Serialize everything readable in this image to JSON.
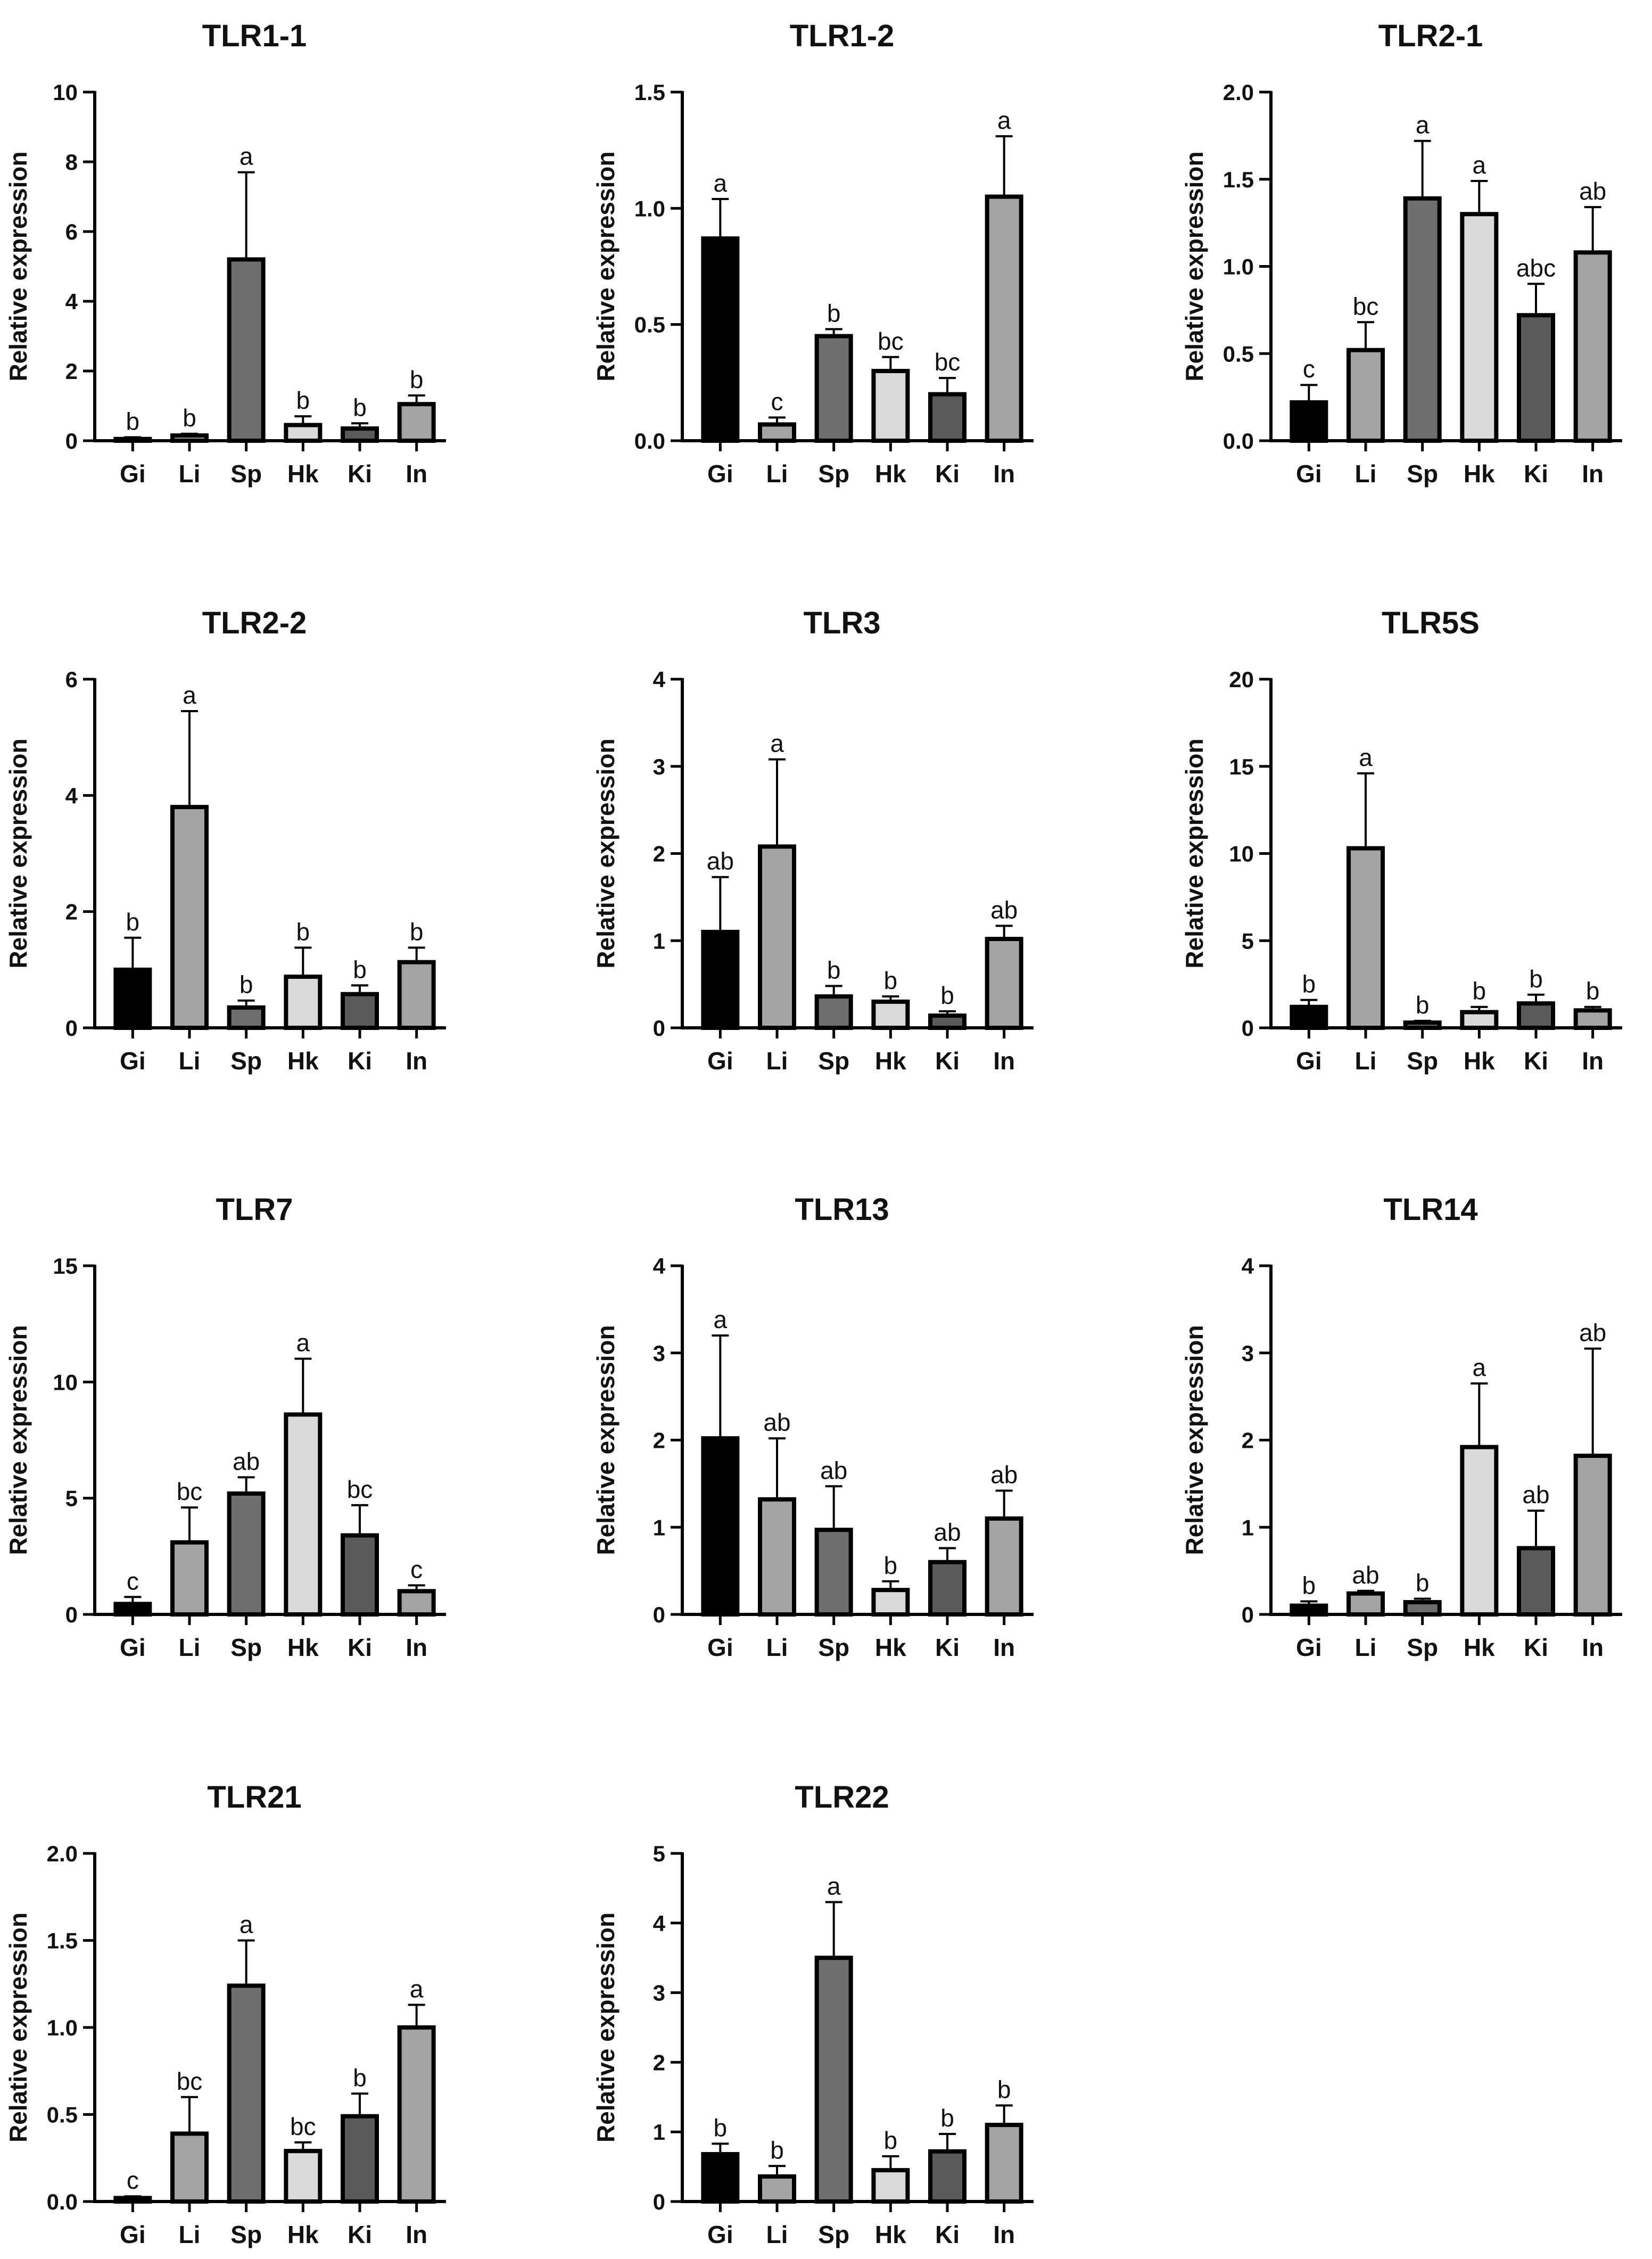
{
  "colors": {
    "Gi": "#000000",
    "Li": "#a3a3a3",
    "Sp": "#6e6e6e",
    "Hk": "#d9d9d9",
    "Ki": "#5a5a5a",
    "In": "#a3a3a3",
    "stroke": "#000000"
  },
  "chart_data": [
    {
      "type": "bar",
      "title": "TLR1-1",
      "ylabel": "Relative expression",
      "xlabel": "",
      "categories": [
        "Gi",
        "Li",
        "Sp",
        "Hk",
        "Ki",
        "In"
      ],
      "values": [
        0.05,
        0.15,
        5.2,
        0.45,
        0.35,
        1.05
      ],
      "errors": [
        0.05,
        0.05,
        2.5,
        0.25,
        0.15,
        0.25
      ],
      "letters": [
        "b",
        "b",
        "a",
        "b",
        "b",
        "b"
      ],
      "ylim": [
        0,
        10
      ],
      "yticks": [
        "0",
        "2",
        "4",
        "6",
        "8",
        "10"
      ]
    },
    {
      "type": "bar",
      "title": "TLR1-2",
      "ylabel": "Relative expression",
      "xlabel": "",
      "categories": [
        "Gi",
        "Li",
        "Sp",
        "Hk",
        "Ki",
        "In"
      ],
      "values": [
        0.87,
        0.07,
        0.45,
        0.3,
        0.2,
        1.05
      ],
      "errors": [
        0.17,
        0.03,
        0.03,
        0.06,
        0.07,
        0.26
      ],
      "letters": [
        "a",
        "c",
        "b",
        "bc",
        "bc",
        "a"
      ],
      "ylim": [
        0,
        1.5
      ],
      "yticks": [
        "0.0",
        "0.5",
        "1.0",
        "1.5"
      ]
    },
    {
      "type": "bar",
      "title": "TLR2-1",
      "ylabel": "Relative expression",
      "xlabel": "",
      "categories": [
        "Gi",
        "Li",
        "Sp",
        "Hk",
        "Ki",
        "In"
      ],
      "values": [
        0.22,
        0.52,
        1.39,
        1.3,
        0.72,
        1.08
      ],
      "errors": [
        0.1,
        0.16,
        0.33,
        0.19,
        0.18,
        0.26
      ],
      "letters": [
        "c",
        "bc",
        "a",
        "a",
        "abc",
        "ab"
      ],
      "ylim": [
        0,
        2
      ],
      "yticks": [
        "0.0",
        "0.5",
        "1.0",
        "1.5",
        "2.0"
      ]
    },
    {
      "type": "bar",
      "title": "TLR2-2",
      "ylabel": "Relative expression",
      "xlabel": "",
      "categories": [
        "Gi",
        "Li",
        "Sp",
        "Hk",
        "Ki",
        "In"
      ],
      "values": [
        1.0,
        3.8,
        0.35,
        0.88,
        0.58,
        1.13
      ],
      "errors": [
        0.55,
        1.65,
        0.12,
        0.5,
        0.15,
        0.25
      ],
      "letters": [
        "b",
        "a",
        "b",
        "b",
        "b",
        "b"
      ],
      "ylim": [
        0,
        6
      ],
      "yticks": [
        "0",
        "2",
        "4",
        "6"
      ]
    },
    {
      "type": "bar",
      "title": "TLR3",
      "ylabel": "Relative expression",
      "xlabel": "",
      "categories": [
        "Gi",
        "Li",
        "Sp",
        "Hk",
        "Ki",
        "In"
      ],
      "values": [
        1.1,
        2.08,
        0.36,
        0.3,
        0.14,
        1.02
      ],
      "errors": [
        0.63,
        1.0,
        0.12,
        0.06,
        0.05,
        0.15
      ],
      "letters": [
        "ab",
        "a",
        "b",
        "b",
        "b",
        "ab"
      ],
      "ylim": [
        0,
        4
      ],
      "yticks": [
        "0",
        "1",
        "2",
        "3",
        "4"
      ]
    },
    {
      "type": "bar",
      "title": "TLR5S",
      "ylabel": "Relative expression",
      "xlabel": "",
      "categories": [
        "Gi",
        "Li",
        "Sp",
        "Hk",
        "Ki",
        "In"
      ],
      "values": [
        1.2,
        10.3,
        0.3,
        0.9,
        1.4,
        1.0
      ],
      "errors": [
        0.4,
        4.3,
        0.1,
        0.3,
        0.5,
        0.2
      ],
      "letters": [
        "b",
        "a",
        "b",
        "b",
        "b",
        "b"
      ],
      "ylim": [
        0,
        20
      ],
      "yticks": [
        "0",
        "5",
        "10",
        "15",
        "20"
      ]
    },
    {
      "type": "bar",
      "title": "TLR7",
      "ylabel": "Relative expression",
      "xlabel": "",
      "categories": [
        "Gi",
        "Li",
        "Sp",
        "Hk",
        "Ki",
        "In"
      ],
      "values": [
        0.45,
        3.1,
        5.2,
        8.6,
        3.4,
        1.0
      ],
      "errors": [
        0.3,
        1.5,
        0.7,
        2.4,
        1.3,
        0.25
      ],
      "letters": [
        "c",
        "bc",
        "ab",
        "a",
        "bc",
        "c"
      ],
      "ylim": [
        0,
        15
      ],
      "yticks": [
        "0",
        "5",
        "10",
        "15"
      ]
    },
    {
      "type": "bar",
      "title": "TLR13",
      "ylabel": "Relative expression",
      "xlabel": "",
      "categories": [
        "Gi",
        "Li",
        "Sp",
        "Hk",
        "Ki",
        "In"
      ],
      "values": [
        2.02,
        1.32,
        0.97,
        0.28,
        0.6,
        1.1
      ],
      "errors": [
        1.18,
        0.7,
        0.5,
        0.1,
        0.16,
        0.32
      ],
      "letters": [
        "a",
        "ab",
        "ab",
        "b",
        "ab",
        "ab"
      ],
      "ylim": [
        0,
        4
      ],
      "yticks": [
        "0",
        "1",
        "2",
        "3",
        "4"
      ]
    },
    {
      "type": "bar",
      "title": "TLR14",
      "ylabel": "Relative expression",
      "xlabel": "",
      "categories": [
        "Gi",
        "Li",
        "Sp",
        "Hk",
        "Ki",
        "In"
      ],
      "values": [
        0.1,
        0.24,
        0.14,
        1.92,
        0.76,
        1.82
      ],
      "errors": [
        0.05,
        0.03,
        0.04,
        0.73,
        0.43,
        1.23
      ],
      "letters": [
        "b",
        "ab",
        "b",
        "a",
        "ab",
        "ab"
      ],
      "ylim": [
        0,
        4
      ],
      "yticks": [
        "0",
        "1",
        "2",
        "3",
        "4"
      ]
    },
    {
      "type": "bar",
      "title": "TLR21",
      "ylabel": "Relative expression",
      "xlabel": "",
      "categories": [
        "Gi",
        "Li",
        "Sp",
        "Hk",
        "Ki",
        "In"
      ],
      "values": [
        0.02,
        0.39,
        1.24,
        0.29,
        0.49,
        1.0
      ],
      "errors": [
        0.01,
        0.21,
        0.26,
        0.05,
        0.13,
        0.13
      ],
      "letters": [
        "c",
        "bc",
        "a",
        "bc",
        "b",
        "a"
      ],
      "ylim": [
        0,
        2
      ],
      "yticks": [
        "0.0",
        "0.5",
        "1.0",
        "1.5",
        "2.0"
      ]
    },
    {
      "type": "bar",
      "title": "TLR22",
      "ylabel": "Relative expression",
      "xlabel": "",
      "categories": [
        "Gi",
        "Li",
        "Sp",
        "Hk",
        "Ki",
        "In"
      ],
      "values": [
        0.68,
        0.36,
        3.5,
        0.45,
        0.72,
        1.1
      ],
      "errors": [
        0.15,
        0.15,
        0.8,
        0.2,
        0.25,
        0.28
      ],
      "letters": [
        "b",
        "b",
        "a",
        "b",
        "b",
        "b"
      ],
      "ylim": [
        0,
        5
      ],
      "yticks": [
        "0",
        "1",
        "2",
        "3",
        "4",
        "5"
      ]
    }
  ]
}
